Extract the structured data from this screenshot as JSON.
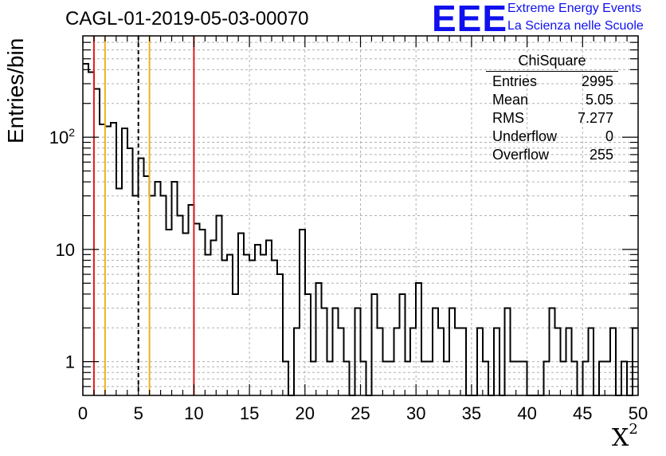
{
  "header": {
    "title": "CAGL-01-2019-05-03-00070",
    "logo_text": "EEE",
    "logo_line1": "Extreme Energy Events",
    "logo_line2": "La Scienza nelle Scuole"
  },
  "axes": {
    "ylabel": "Entries/bin",
    "xlabel": "X",
    "xlabel_sup": "2"
  },
  "stats": {
    "title": "ChiSquare",
    "rows": [
      {
        "label": "Entries",
        "value": "2995"
      },
      {
        "label": "Mean",
        "value": "5.05"
      },
      {
        "label": "RMS",
        "value": "7.277"
      },
      {
        "label": "Underflow",
        "value": "0"
      },
      {
        "label": "Overflow",
        "value": "255"
      }
    ]
  },
  "chart_data": {
    "type": "histogram",
    "title": "CAGL-01-2019-05-03-00070",
    "xlabel": "X²",
    "ylabel": "Entries/bin",
    "xlim": [
      0,
      50
    ],
    "ylim": [
      0.5,
      800
    ],
    "yscale": "log",
    "bin_width": 0.5,
    "grid": true,
    "x_ticks": [
      0,
      5,
      10,
      15,
      20,
      25,
      30,
      35,
      40,
      45,
      50
    ],
    "y_ticks": [
      {
        "value": 1,
        "label": "1"
      },
      {
        "value": 10,
        "label": "10"
      },
      {
        "value": 100,
        "label": "10²"
      }
    ],
    "values": [
      450,
      380,
      270,
      130,
      125,
      135,
      35,
      120,
      80,
      30,
      65,
      45,
      30,
      40,
      30,
      15,
      40,
      20,
      14,
      25,
      17,
      15,
      9,
      12,
      20,
      8,
      9,
      4,
      14,
      9,
      8,
      11,
      9,
      12,
      8,
      6,
      1,
      0,
      2,
      15,
      4,
      1,
      5,
      3,
      1,
      3,
      2,
      1,
      0,
      3,
      1,
      0,
      4,
      2,
      1,
      1,
      2,
      4,
      1,
      2,
      5,
      1,
      1,
      3,
      2,
      1,
      3,
      2,
      2,
      0,
      0,
      2,
      1,
      0,
      2,
      0,
      3,
      1,
      1,
      1,
      0,
      0,
      0,
      1,
      3,
      2,
      1,
      2,
      1,
      0,
      1,
      2,
      0,
      1,
      1,
      2,
      0,
      1,
      0,
      2
    ],
    "reference_lines": [
      {
        "x": 1,
        "color": "#e31a1c",
        "style": "solid"
      },
      {
        "x": 2,
        "color": "#f2b01e",
        "style": "solid"
      },
      {
        "x": 5,
        "color": "#000000",
        "style": "dashed"
      },
      {
        "x": 6,
        "color": "#f2b01e",
        "style": "solid"
      },
      {
        "x": 10,
        "color": "#e31a1c",
        "style": "solid"
      }
    ],
    "line_color": "#000000",
    "grid_color": "#b0b0b0"
  }
}
